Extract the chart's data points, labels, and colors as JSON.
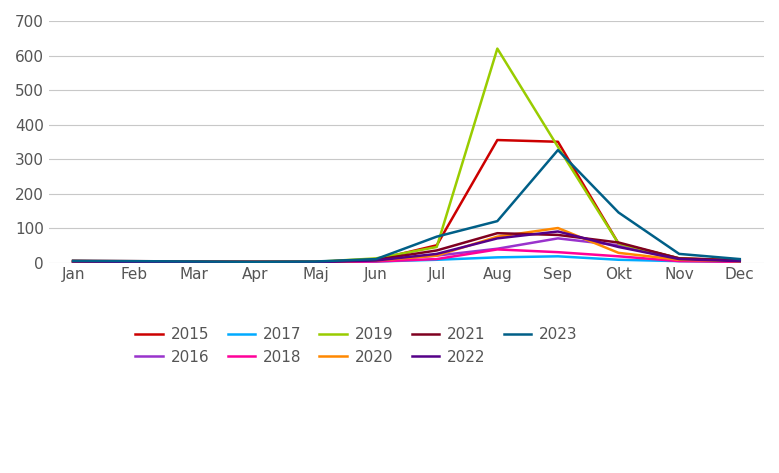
{
  "months": [
    "Jan",
    "Feb",
    "Mar",
    "Apr",
    "Maj",
    "Jun",
    "Jul",
    "Aug",
    "Sep",
    "Okt",
    "Nov",
    "Dec"
  ],
  "series_order": [
    "2015",
    "2016",
    "2017",
    "2018",
    "2019",
    "2020",
    "2021",
    "2022",
    "2023"
  ],
  "series": {
    "2015": {
      "color": "#cc0000",
      "values": [
        5,
        4,
        3,
        2,
        2,
        8,
        50,
        355,
        350,
        55,
        12,
        7
      ]
    },
    "2016": {
      "color": "#9933cc",
      "values": [
        2,
        2,
        1,
        1,
        1,
        4,
        20,
        40,
        70,
        50,
        8,
        4
      ]
    },
    "2017": {
      "color": "#00aaff",
      "values": [
        2,
        2,
        1,
        1,
        1,
        3,
        8,
        15,
        18,
        8,
        4,
        2
      ]
    },
    "2018": {
      "color": "#ff0099",
      "values": [
        2,
        1,
        1,
        1,
        1,
        3,
        10,
        38,
        30,
        18,
        4,
        2
      ]
    },
    "2019": {
      "color": "#99cc00",
      "values": [
        2,
        2,
        1,
        1,
        2,
        12,
        45,
        620,
        335,
        55,
        12,
        4
      ]
    },
    "2020": {
      "color": "#ff8800",
      "values": [
        4,
        3,
        2,
        2,
        2,
        6,
        20,
        75,
        100,
        28,
        8,
        4
      ]
    },
    "2021": {
      "color": "#7f0020",
      "values": [
        4,
        3,
        2,
        2,
        2,
        8,
        35,
        85,
        80,
        58,
        12,
        6
      ]
    },
    "2022": {
      "color": "#550088",
      "values": [
        3,
        2,
        1,
        1,
        1,
        6,
        25,
        70,
        90,
        45,
        10,
        4
      ]
    },
    "2023": {
      "color": "#005f87",
      "values": [
        5,
        4,
        3,
        2,
        3,
        10,
        75,
        120,
        326,
        145,
        25,
        10
      ]
    }
  },
  "ylim": [
    0,
    700
  ],
  "yticks": [
    0,
    100,
    200,
    300,
    400,
    500,
    600,
    700
  ],
  "background_color": "#ffffff",
  "grid_color": "#c8c8c8",
  "line_width": 1.8,
  "tick_fontsize": 11,
  "legend_fontsize": 11,
  "fig_width": 7.79,
  "fig_height": 4.73
}
